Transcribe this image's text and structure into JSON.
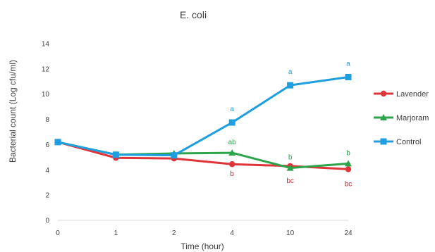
{
  "chart_data": {
    "type": "line",
    "title": "E. coli",
    "xlabel": "Time (hour)",
    "ylabel": "Bacterial count (Log cfu/ml)",
    "categories": [
      "0",
      "1",
      "2",
      "4",
      "10",
      "24"
    ],
    "ylim": [
      0,
      14
    ],
    "yticks": [
      0,
      2,
      4,
      6,
      8,
      10,
      12,
      14
    ],
    "grid": false,
    "legend_position": "right",
    "series": [
      {
        "name": "Lavender",
        "color": "#e0343a",
        "marker": "circle",
        "values": [
          6.2,
          4.95,
          4.9,
          4.45,
          4.3,
          4.05
        ],
        "labels": [
          "",
          "",
          "",
          "b",
          "bc",
          "bc"
        ]
      },
      {
        "name": "Marjoram",
        "color": "#2ca54a",
        "marker": "triangle",
        "values": [
          6.2,
          5.2,
          5.3,
          5.35,
          4.15,
          4.5
        ],
        "labels": [
          "",
          "",
          "",
          "ab",
          "b",
          "b"
        ]
      },
      {
        "name": "Control",
        "color": "#1f9ee0",
        "marker": "square",
        "values": [
          6.2,
          5.2,
          5.15,
          7.75,
          10.7,
          11.35
        ],
        "labels": [
          "",
          "",
          "",
          "a",
          "a",
          "a"
        ]
      }
    ]
  }
}
